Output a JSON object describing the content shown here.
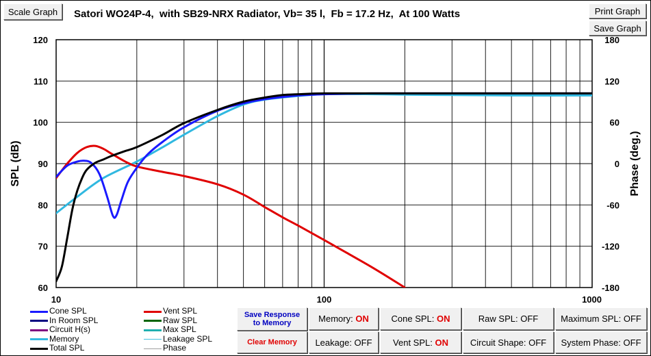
{
  "window": {
    "title": "Satori WO24P-4,  with SB29-NRX Radiator, Vb= 35 l,  Fb = 17.2 Hz,  At 100 Watts",
    "scale_graph_label": "Scale Graph",
    "print_graph_label": "Print Graph",
    "save_graph_label": "Save Graph"
  },
  "legend": [
    {
      "label": "Cone SPL",
      "color": "#1a1aff",
      "width": 3
    },
    {
      "label": "Vent SPL",
      "color": "#e00000",
      "width": 3
    },
    {
      "label": "In Room SPL",
      "color": "#000080",
      "width": 3
    },
    {
      "label": "Raw SPL",
      "color": "#006400",
      "width": 3
    },
    {
      "label": "Circuit H(s)",
      "color": "#800080",
      "width": 3
    },
    {
      "label": "Max SPL",
      "color": "#20b0b0",
      "width": 3
    },
    {
      "label": "Memory",
      "color": "#30b8e0",
      "width": 3
    },
    {
      "label": "Leakage SPL",
      "color": "#40c0e0",
      "width": 1
    },
    {
      "label": "Total SPL",
      "color": "#000000",
      "width": 3
    },
    {
      "label": "Phase",
      "color": "#a0a0a0",
      "width": 1
    }
  ],
  "controls": {
    "save_response_label": "Save Response to Memory",
    "clear_memory_label": "Clear Memory",
    "toggles": [
      {
        "name": "memory-toggle",
        "label": "Memory: ",
        "state": "ON"
      },
      {
        "name": "cone-spl-toggle",
        "label": "Cone SPL: ",
        "state": "ON"
      },
      {
        "name": "raw-spl-toggle",
        "label": "Raw SPL: ",
        "state": "OFF"
      },
      {
        "name": "maximum-spl-toggle",
        "label": "Maximum SPL: ",
        "state": "OFF"
      },
      {
        "name": "leakage-toggle",
        "label": "Leakage: ",
        "state": "OFF"
      },
      {
        "name": "vent-spl-toggle",
        "label": "Vent SPL: ",
        "state": "ON"
      },
      {
        "name": "circuit-shape-toggle",
        "label": "Circuit Shape: ",
        "state": "OFF"
      },
      {
        "name": "system-phase-toggle",
        "label": "System Phase: ",
        "state": "OFF"
      }
    ]
  },
  "chart_data": {
    "type": "line",
    "title": "",
    "xlabel": "",
    "ylabel": "SPL (dB)",
    "y2label": "Phase (deg.)",
    "xscale": "log",
    "xlim": [
      10,
      1000
    ],
    "ylim": [
      60,
      120
    ],
    "y2lim": [
      -180,
      180
    ],
    "x_ticks": [
      10,
      100,
      1000
    ],
    "y_ticks": [
      60,
      70,
      80,
      90,
      100,
      110,
      120
    ],
    "y2_ticks": [
      -180,
      -120,
      -60,
      0,
      60,
      120,
      180
    ],
    "grid": true,
    "series": [
      {
        "name": "Total SPL",
        "color": "#000000",
        "width": 3,
        "x": [
          10,
          10.5,
          11,
          11.5,
          12,
          12.5,
          13,
          14,
          15,
          16,
          18,
          20,
          25,
          30,
          40,
          50,
          60,
          70,
          80,
          100,
          150,
          200,
          300,
          500,
          1000
        ],
        "y": [
          61.5,
          65,
          72,
          79,
          83.5,
          86.5,
          88.5,
          90.2,
          91,
          91.8,
          93,
          94,
          97,
          99.8,
          103,
          105,
          106,
          106.6,
          106.8,
          107,
          107,
          107,
          107,
          107,
          107
        ]
      },
      {
        "name": "Cone SPL",
        "color": "#1a1aff",
        "width": 3,
        "x": [
          10,
          11,
          12,
          12.7,
          13.5,
          14.5,
          15.5,
          16.3,
          16.8,
          17.5,
          18.5,
          20,
          22,
          25,
          30,
          40,
          50,
          60,
          80,
          100,
          150,
          200,
          300,
          500,
          1000
        ],
        "y": [
          86.8,
          89.5,
          90.5,
          90.7,
          90.2,
          87.5,
          82,
          77.3,
          77.5,
          81,
          85.5,
          89,
          92.3,
          95.3,
          98.8,
          102.8,
          104.6,
          105.6,
          106.5,
          106.8,
          107,
          107,
          107,
          107,
          107
        ]
      },
      {
        "name": "Memory",
        "color": "#30b8e0",
        "width": 3,
        "x": [
          10,
          12,
          15,
          20,
          25,
          30,
          40,
          50,
          60,
          80,
          100,
          150,
          200,
          300,
          500,
          1000
        ],
        "y": [
          78,
          82,
          86.5,
          90.5,
          94,
          97,
          101.5,
          104.3,
          105.5,
          106.4,
          106.8,
          106.8,
          106.7,
          106.6,
          106.5,
          106.5
        ]
      },
      {
        "name": "Vent SPL",
        "color": "#e00000",
        "width": 3,
        "x": [
          10,
          11,
          12,
          13,
          14,
          15,
          16,
          18,
          20,
          25,
          30,
          40,
          50,
          60,
          70,
          80,
          100,
          150,
          200
        ],
        "y": [
          86.5,
          90,
          92.6,
          94,
          94.3,
          93.6,
          92.5,
          90.6,
          89.3,
          88,
          87,
          85,
          82.5,
          79.5,
          77,
          75,
          71.5,
          65,
          60
        ]
      }
    ]
  }
}
